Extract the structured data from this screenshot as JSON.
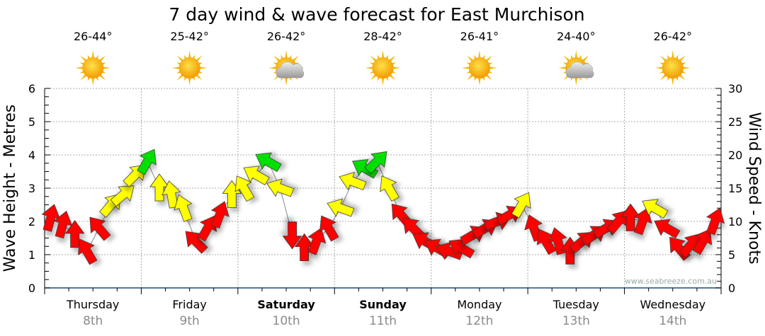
{
  "chart_data": {
    "type": "scatter",
    "title": "7 day wind & wave forecast for East Murchison",
    "ylabel_left": "Wave Height - Metres",
    "ylabel_right": "Wind Speed - Knots",
    "ylim_left": [
      0,
      6
    ],
    "ylim_right": [
      0,
      30
    ],
    "yticks_left": [
      "0",
      "1",
      "2",
      "3",
      "4",
      "5",
      "6"
    ],
    "yticks_right": [
      "0",
      "5",
      "10",
      "15",
      "20",
      "25",
      "30"
    ],
    "grid": true,
    "watermark": "www.seabreeze.com.au",
    "days": [
      {
        "name": "Thursday",
        "date": "8th",
        "temp": "26-44°",
        "icon": "sunny",
        "bold": false
      },
      {
        "name": "Friday",
        "date": "9th",
        "temp": "25-42°",
        "icon": "sunny",
        "bold": false
      },
      {
        "name": "Saturday",
        "date": "10th",
        "temp": "26-42°",
        "icon": "partly-cloudy",
        "bold": true
      },
      {
        "name": "Sunday",
        "date": "11th",
        "temp": "28-42°",
        "icon": "sunny",
        "bold": true
      },
      {
        "name": "Monday",
        "date": "12th",
        "temp": "26-41°",
        "icon": "sunny",
        "bold": false
      },
      {
        "name": "Tuesday",
        "date": "13th",
        "temp": "24-40°",
        "icon": "partly-cloudy",
        "bold": false
      },
      {
        "name": "Wednesday",
        "date": "14th",
        "temp": "26-42°",
        "icon": "sunny",
        "bold": false
      }
    ],
    "wind_interval_hours": 3,
    "wind_speed_knots": [
      10.5,
      9.5,
      8,
      5.5,
      9,
      12.5,
      14,
      17,
      19,
      15,
      14,
      12,
      7,
      9,
      11,
      14,
      15,
      17,
      19,
      15,
      8,
      6,
      7,
      9,
      12,
      16,
      18,
      19,
      15,
      11,
      9,
      7,
      6,
      5.5,
      6,
      8,
      9,
      10,
      11,
      12.5,
      9,
      7,
      7,
      5.5,
      7,
      8,
      9,
      10,
      10.5,
      10,
      12,
      9,
      6,
      6.5,
      7,
      10
    ],
    "wind_heading_deg": [
      15,
      15,
      0,
      330,
      320,
      40,
      50,
      45,
      30,
      0,
      350,
      340,
      315,
      30,
      20,
      0,
      330,
      300,
      300,
      290,
      180,
      0,
      20,
      330,
      290,
      290,
      300,
      45,
      330,
      320,
      315,
      300,
      300,
      290,
      300,
      60,
      60,
      70,
      60,
      30,
      340,
      330,
      345,
      0,
      50,
      55,
      60,
      40,
      0,
      20,
      300,
      300,
      320,
      40,
      30,
      20
    ],
    "colors": {
      "low": "#ff0000",
      "mid": "#ffff00",
      "high": "#00e000",
      "axis": "#1a4f7a",
      "grid": "#aaaaaa"
    },
    "color_thresholds_knots": [
      12,
      18
    ]
  }
}
